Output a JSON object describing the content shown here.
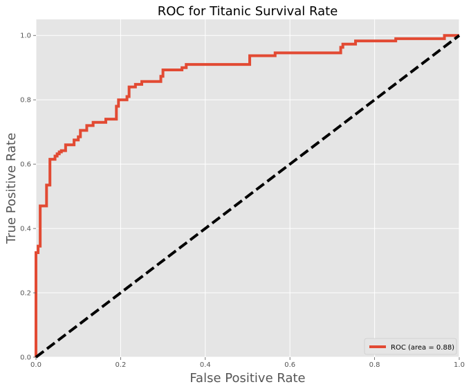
{
  "chart_data": {
    "type": "line",
    "title": "ROC for Titanic Survival Rate",
    "xlabel": "False Positive Rate",
    "ylabel": "True Positive Rate",
    "xlim": [
      0,
      1
    ],
    "ylim": [
      0,
      1.05
    ],
    "x_ticks": [
      "0.0",
      "0.2",
      "0.4",
      "0.6",
      "0.8",
      "1.0"
    ],
    "y_ticks": [
      "0.0",
      "0.2",
      "0.4",
      "0.6",
      "0.8",
      "1.0"
    ],
    "grid": true,
    "legend_position": "bottom-right",
    "series": [
      {
        "name": "ROC (area = 0.88)",
        "color": "#e24a33",
        "style": "solid",
        "x": [
          0.0,
          0.0,
          0.0,
          0.005,
          0.005,
          0.01,
          0.01,
          0.025,
          0.025,
          0.033,
          0.033,
          0.045,
          0.045,
          0.05,
          0.05,
          0.055,
          0.055,
          0.06,
          0.06,
          0.07,
          0.07,
          0.09,
          0.09,
          0.1,
          0.1,
          0.105,
          0.105,
          0.12,
          0.12,
          0.135,
          0.135,
          0.165,
          0.165,
          0.19,
          0.19,
          0.195,
          0.195,
          0.215,
          0.215,
          0.22,
          0.22,
          0.235,
          0.235,
          0.25,
          0.25,
          0.295,
          0.295,
          0.3,
          0.3,
          0.345,
          0.345,
          0.355,
          0.355,
          0.505,
          0.505,
          0.565,
          0.565,
          0.72,
          0.72,
          0.725,
          0.725,
          0.755,
          0.755,
          0.85,
          0.85,
          0.965,
          0.965,
          1.0
        ],
        "y": [
          0.0,
          0.32,
          0.325,
          0.325,
          0.345,
          0.345,
          0.47,
          0.47,
          0.535,
          0.535,
          0.615,
          0.615,
          0.625,
          0.625,
          0.632,
          0.632,
          0.638,
          0.638,
          0.642,
          0.642,
          0.66,
          0.66,
          0.675,
          0.675,
          0.685,
          0.685,
          0.705,
          0.705,
          0.72,
          0.72,
          0.73,
          0.73,
          0.74,
          0.74,
          0.78,
          0.78,
          0.8,
          0.8,
          0.81,
          0.81,
          0.84,
          0.84,
          0.848,
          0.848,
          0.857,
          0.857,
          0.873,
          0.873,
          0.893,
          0.893,
          0.9,
          0.9,
          0.91,
          0.91,
          0.937,
          0.937,
          0.946,
          0.946,
          0.963,
          0.963,
          0.973,
          0.973,
          0.983,
          0.983,
          0.99,
          0.99,
          1.0,
          1.0
        ]
      },
      {
        "name": "",
        "color": "#000000",
        "style": "dashed",
        "x": [
          0,
          1
        ],
        "y": [
          0,
          1
        ]
      }
    ]
  }
}
